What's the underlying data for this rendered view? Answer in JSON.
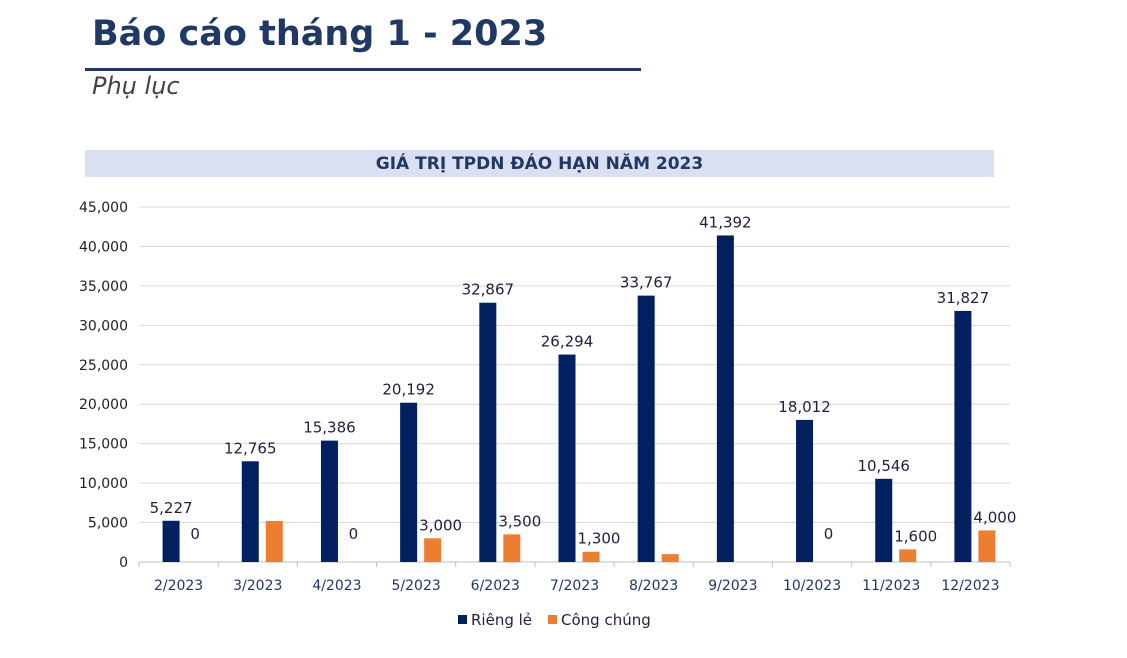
{
  "header": {
    "title": "Báo cáo tháng 1 - 2023",
    "subtitle": "Phụ lục"
  },
  "chart_data": {
    "type": "bar",
    "title": "GIÁ TRỊ TPDN ĐÁO HẠN NĂM 2023",
    "categories": [
      "2/2023",
      "3/2023",
      "4/2023",
      "5/2023",
      "6/2023",
      "7/2023",
      "8/2023",
      "9/2023",
      "10/2023",
      "11/2023",
      "12/2023"
    ],
    "series": [
      {
        "name": "Riêng lẻ",
        "color": "#002060",
        "values": [
          5227,
          12765,
          15386,
          20192,
          32867,
          26294,
          33767,
          41392,
          18012,
          10546,
          31827
        ],
        "labels": [
          "5,227",
          "12,765",
          "15,386",
          "20,192",
          "32,867",
          "26,294",
          "33,767",
          "41,392",
          "18,012",
          "10,546",
          "31,827"
        ]
      },
      {
        "name": "Công chúng",
        "color": "#ed7d31",
        "values": [
          0,
          5200,
          0,
          3000,
          3500,
          1300,
          1000,
          null,
          0,
          1600,
          4000
        ],
        "labels": [
          "0",
          null,
          "0",
          "3,000",
          "3,500",
          "1,300",
          null,
          null,
          "0",
          "1,600",
          "4,000"
        ]
      }
    ],
    "ylim": [
      0,
      45000
    ],
    "yticks": [
      0,
      5000,
      10000,
      15000,
      20000,
      25000,
      30000,
      35000,
      40000,
      45000
    ],
    "ytick_labels": [
      "0",
      "5,000",
      "10,000",
      "15,000",
      "20,000",
      "25,000",
      "30,000",
      "35,000",
      "40,000",
      "45,000"
    ],
    "grid": true,
    "legend": "bottom"
  }
}
